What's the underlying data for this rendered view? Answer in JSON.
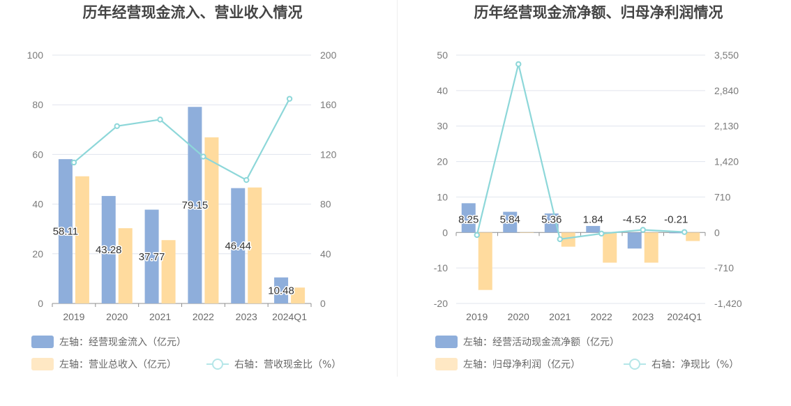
{
  "chart_data": [
    {
      "type": "bar",
      "title": "历年经营现金流入、营业收入情况",
      "categories": [
        "2019",
        "2020",
        "2021",
        "2022",
        "2023",
        "2024Q1"
      ],
      "left_axis": {
        "ylim": [
          0,
          100
        ],
        "ticks": [
          "0",
          "20",
          "40",
          "60",
          "80",
          "100"
        ]
      },
      "right_axis": {
        "ylim": [
          0,
          200
        ],
        "ticks": [
          "0",
          "40",
          "80",
          "120",
          "160",
          "200"
        ]
      },
      "series": [
        {
          "name": "左轴：经营现金流入（亿元）",
          "kind": "bar",
          "axis": "left",
          "color": "#8eaedb",
          "values": [
            58.11,
            43.28,
            37.77,
            79.15,
            46.44,
            10.48
          ],
          "labels": [
            "58.11",
            "43.28",
            "37.77",
            "79.15",
            "46.44",
            "10.48"
          ]
        },
        {
          "name": "左轴：营业总收入（亿元）",
          "kind": "bar",
          "axis": "left",
          "color": "#ffdb9e",
          "values": [
            51.2,
            30.3,
            25.5,
            66.9,
            46.7,
            6.4
          ]
        },
        {
          "name": "右轴：营收现金比（%）",
          "kind": "line",
          "axis": "right",
          "color": "#8dd7d9",
          "values": [
            113.5,
            142.8,
            148.1,
            118.3,
            99.4,
            164.8
          ]
        }
      ],
      "grid": true,
      "legend_position": "bottom"
    },
    {
      "type": "bar",
      "title": "历年经营现金流净额、归母净利润情况",
      "categories": [
        "2019",
        "2020",
        "2021",
        "2022",
        "2023",
        "2024Q1"
      ],
      "left_axis": {
        "ylim": [
          -20,
          50
        ],
        "ticks": [
          "-20",
          "-10",
          "0",
          "10",
          "20",
          "30",
          "40",
          "50"
        ]
      },
      "right_axis": {
        "ylim": [
          -1420,
          3550
        ],
        "ticks": [
          "-1,420",
          "-710",
          "0",
          "710",
          "1,420",
          "2,130",
          "2,840",
          "3,550"
        ]
      },
      "series": [
        {
          "name": "左轴：经营活动现金流净额（亿元）",
          "kind": "bar",
          "axis": "left",
          "color": "#8eaedb",
          "values": [
            8.25,
            5.84,
            5.36,
            1.84,
            -4.52,
            -0.21
          ],
          "labels": [
            "8.25",
            "5.84",
            "5.36",
            "1.84",
            "-4.52",
            "-0.21"
          ]
        },
        {
          "name": "左轴：归母净利润（亿元）",
          "kind": "bar",
          "axis": "left",
          "color": "#ffdb9e",
          "values": [
            -16.2,
            0.0,
            -4.0,
            -8.5,
            -8.5,
            -2.4
          ]
        },
        {
          "name": "右轴：净现比（%）",
          "kind": "line",
          "axis": "right",
          "color": "#8dd7d9",
          "values": [
            -51,
            3370,
            -134,
            -22,
            53,
            9
          ]
        }
      ],
      "grid": true,
      "legend_position": "bottom"
    }
  ]
}
